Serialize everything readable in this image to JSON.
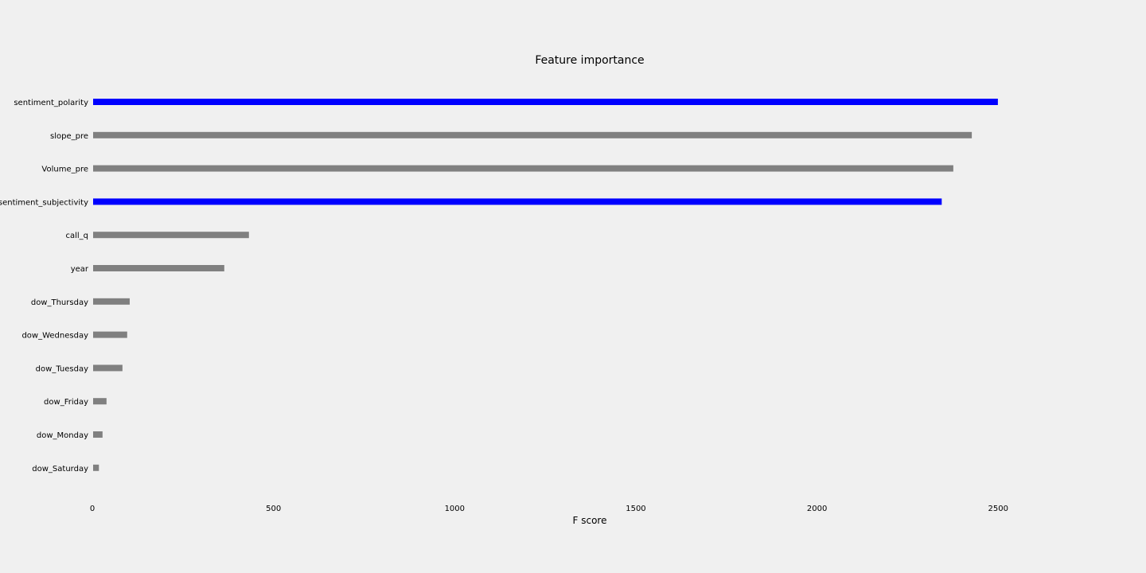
{
  "colors": {
    "background": "#f0f0f0",
    "highlight": "#0000ff",
    "default": "#808080"
  },
  "chart_data": {
    "type": "bar",
    "orientation": "horizontal",
    "title": "Feature importance",
    "xlabel": "F score",
    "ylabel": "",
    "xlim": [
      0,
      2900
    ],
    "xticks": [
      0,
      500,
      1000,
      1500,
      2000,
      2500
    ],
    "grid": false,
    "categories": [
      "sentiment_polarity",
      "slope_pre",
      "Volume_pre",
      "sentiment_subjectivity",
      "call_q",
      "year",
      "dow_Thursday",
      "dow_Wednesday",
      "dow_Tuesday",
      "dow_Friday",
      "dow_Monday",
      "dow_Saturday"
    ],
    "values": [
      2497,
      2425,
      2374,
      2342,
      430,
      362,
      101,
      94,
      81,
      37,
      26,
      16
    ],
    "bar_colors": [
      "#0000ff",
      "#808080",
      "#808080",
      "#0000ff",
      "#808080",
      "#808080",
      "#808080",
      "#808080",
      "#808080",
      "#808080",
      "#808080",
      "#808080"
    ]
  }
}
